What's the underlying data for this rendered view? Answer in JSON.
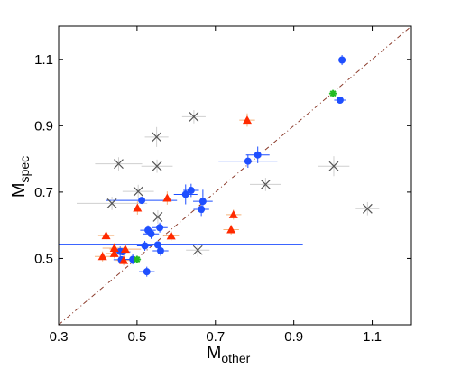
{
  "chart_data": {
    "type": "scatter",
    "xlabel": "M",
    "xlabel_sub": "other",
    "ylabel": "M",
    "ylabel_sub": "spec",
    "xlim": [
      0.3,
      1.2
    ],
    "ylim": [
      0.3,
      1.2
    ],
    "x_ticks": [
      "0.3",
      "0.5",
      "0.7",
      "0.9",
      "1.1"
    ],
    "y_ticks": [
      "0.5",
      "0.7",
      "0.9",
      "1.1"
    ],
    "grid": false,
    "reference_line": {
      "x": [
        0.3,
        1.2
      ],
      "y": [
        0.3,
        1.2
      ],
      "color": "#8b3a2a",
      "style": "dash-dot"
    },
    "series": [
      {
        "marker": "circle",
        "color": "#1f4fff",
        "errorbar_color": "#1f4fff",
        "points": [
          {
            "x": 1.023,
            "y": 1.098,
            "xerr": 0.03,
            "yerr": 0.015
          },
          {
            "x": 1.018,
            "y": 0.977,
            "xerr": 0.015,
            "yerr": 0.008
          },
          {
            "x": 0.808,
            "y": 0.812,
            "xerr": 0.03,
            "yerr": 0.025
          },
          {
            "x": 0.783,
            "y": 0.793,
            "xerr": 0.075,
            "yerr": 0.02
          },
          {
            "x": 0.638,
            "y": 0.705,
            "xerr": 0.02,
            "yerr": 0.02
          },
          {
            "x": 0.624,
            "y": 0.693,
            "xerr": 0.03,
            "yerr": 0.03
          },
          {
            "x": 0.668,
            "y": 0.672,
            "xerr": 0.025,
            "yerr": 0.035
          },
          {
            "x": 0.664,
            "y": 0.648,
            "xerr": 0.02,
            "yerr": 0.02
          },
          {
            "x": 0.512,
            "y": 0.675,
            "xerr": 0.09,
            "yerr": 0.01
          },
          {
            "x": 0.528,
            "y": 0.585,
            "xerr": 0.02,
            "yerr": 0.015
          },
          {
            "x": 0.536,
            "y": 0.574,
            "xerr": 0.02,
            "yerr": 0.015
          },
          {
            "x": 0.558,
            "y": 0.593,
            "xerr": 0.02,
            "yerr": 0.015
          },
          {
            "x": 0.553,
            "y": 0.541,
            "xerr": 0.37,
            "yerr": 0.01
          },
          {
            "x": 0.52,
            "y": 0.538,
            "xerr": 0.02,
            "yerr": 0.015
          },
          {
            "x": 0.56,
            "y": 0.523,
            "xerr": 0.02,
            "yerr": 0.015
          },
          {
            "x": 0.457,
            "y": 0.521,
            "xerr": 0.02,
            "yerr": 0.015
          },
          {
            "x": 0.463,
            "y": 0.52,
            "xerr": 0.02,
            "yerr": 0.01
          },
          {
            "x": 0.46,
            "y": 0.496,
            "xerr": 0.02,
            "yerr": 0.01
          },
          {
            "x": 0.489,
            "y": 0.497,
            "xerr": 0.02,
            "yerr": 0.015
          },
          {
            "x": 0.525,
            "y": 0.46,
            "xerr": 0.02,
            "yerr": 0.015
          }
        ]
      },
      {
        "marker": "triangle",
        "color": "#ff2a00",
        "errorbar_color": "#f5b27a",
        "points": [
          {
            "x": 0.781,
            "y": 0.917,
            "xerr": 0.02,
            "yerr": 0.02
          },
          {
            "x": 0.577,
            "y": 0.682,
            "xerr": 0.02,
            "yerr": 0.02
          },
          {
            "x": 0.501,
            "y": 0.652,
            "xerr": 0.02,
            "yerr": 0.02
          },
          {
            "x": 0.746,
            "y": 0.632,
            "xerr": 0.02,
            "yerr": 0.015
          },
          {
            "x": 0.74,
            "y": 0.587,
            "xerr": 0.02,
            "yerr": 0.015
          },
          {
            "x": 0.587,
            "y": 0.568,
            "xerr": 0.02,
            "yerr": 0.015
          },
          {
            "x": 0.421,
            "y": 0.569,
            "xerr": 0.02,
            "yerr": 0.015
          },
          {
            "x": 0.442,
            "y": 0.531,
            "xerr": 0.03,
            "yerr": 0.015
          },
          {
            "x": 0.47,
            "y": 0.528,
            "xerr": 0.04,
            "yerr": 0.015
          },
          {
            "x": 0.442,
            "y": 0.515,
            "xerr": 0.02,
            "yerr": 0.015
          },
          {
            "x": 0.412,
            "y": 0.506,
            "xerr": 0.02,
            "yerr": 0.015
          },
          {
            "x": 0.466,
            "y": 0.494,
            "xerr": 0.02,
            "yerr": 0.015
          }
        ]
      },
      {
        "marker": "x",
        "color": "#555555",
        "errorbar_color": "#cfcfcf",
        "points": [
          {
            "x": 0.645,
            "y": 0.927,
            "xerr": 0.03,
            "yerr": 0.02
          },
          {
            "x": 0.55,
            "y": 0.866,
            "xerr": 0.03,
            "yerr": 0.03
          },
          {
            "x": 0.453,
            "y": 0.785,
            "xerr": 0.06,
            "yerr": 0.02
          },
          {
            "x": 0.551,
            "y": 0.778,
            "xerr": 0.04,
            "yerr": 0.02
          },
          {
            "x": 1.002,
            "y": 0.778,
            "xerr": 0.04,
            "yerr": 0.03
          },
          {
            "x": 0.828,
            "y": 0.723,
            "xerr": 0.04,
            "yerr": 0.02
          },
          {
            "x": 0.503,
            "y": 0.702,
            "xerr": 0.04,
            "yerr": 0.02
          },
          {
            "x": 0.436,
            "y": 0.666,
            "xerr": 0.09,
            "yerr": 0.02
          },
          {
            "x": 1.088,
            "y": 0.65,
            "xerr": 0.03,
            "yerr": 0.02
          },
          {
            "x": 0.553,
            "y": 0.625,
            "xerr": 0.03,
            "yerr": 0.02
          },
          {
            "x": 0.655,
            "y": 0.525,
            "xerr": 0.03,
            "yerr": 0.02
          }
        ]
      },
      {
        "marker": "star",
        "color": "#22bb22",
        "errorbar_color": "#77dd77",
        "points": [
          {
            "x": 1.0,
            "y": 0.997,
            "xerr": 0.01,
            "yerr": 0.005
          },
          {
            "x": 0.5,
            "y": 0.497,
            "xerr": 0.01,
            "yerr": 0.005
          }
        ]
      }
    ]
  }
}
